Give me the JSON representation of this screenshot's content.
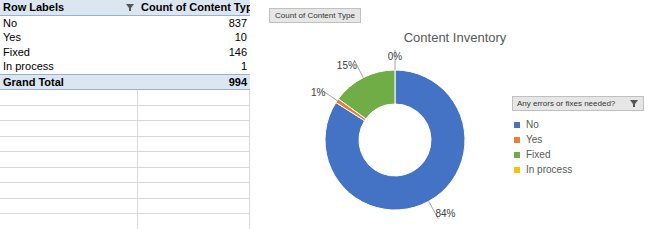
{
  "table": {
    "header": [
      "Row Labels",
      "Count of Content Type"
    ],
    "rows": [
      [
        "No",
        837
      ],
      [
        "Yes",
        10
      ],
      [
        "Fixed",
        146
      ],
      [
        "In process",
        1
      ]
    ],
    "total": [
      "Grand Total",
      994
    ]
  },
  "chart_data": {
    "type": "donut",
    "title": "Content Inventory",
    "field_button": "Count of Content Type",
    "legend_title": "Any errors or fixes needed?",
    "categories": [
      "No",
      "Yes",
      "Fixed",
      "In process"
    ],
    "values": [
      84,
      1,
      15,
      0
    ],
    "value_labels": [
      "84%",
      "1%",
      "15%",
      "0%"
    ],
    "colors": [
      "#4472c4",
      "#ed7d31",
      "#70ad47",
      "#ffc000"
    ],
    "data_labels": true,
    "legend": "right"
  }
}
